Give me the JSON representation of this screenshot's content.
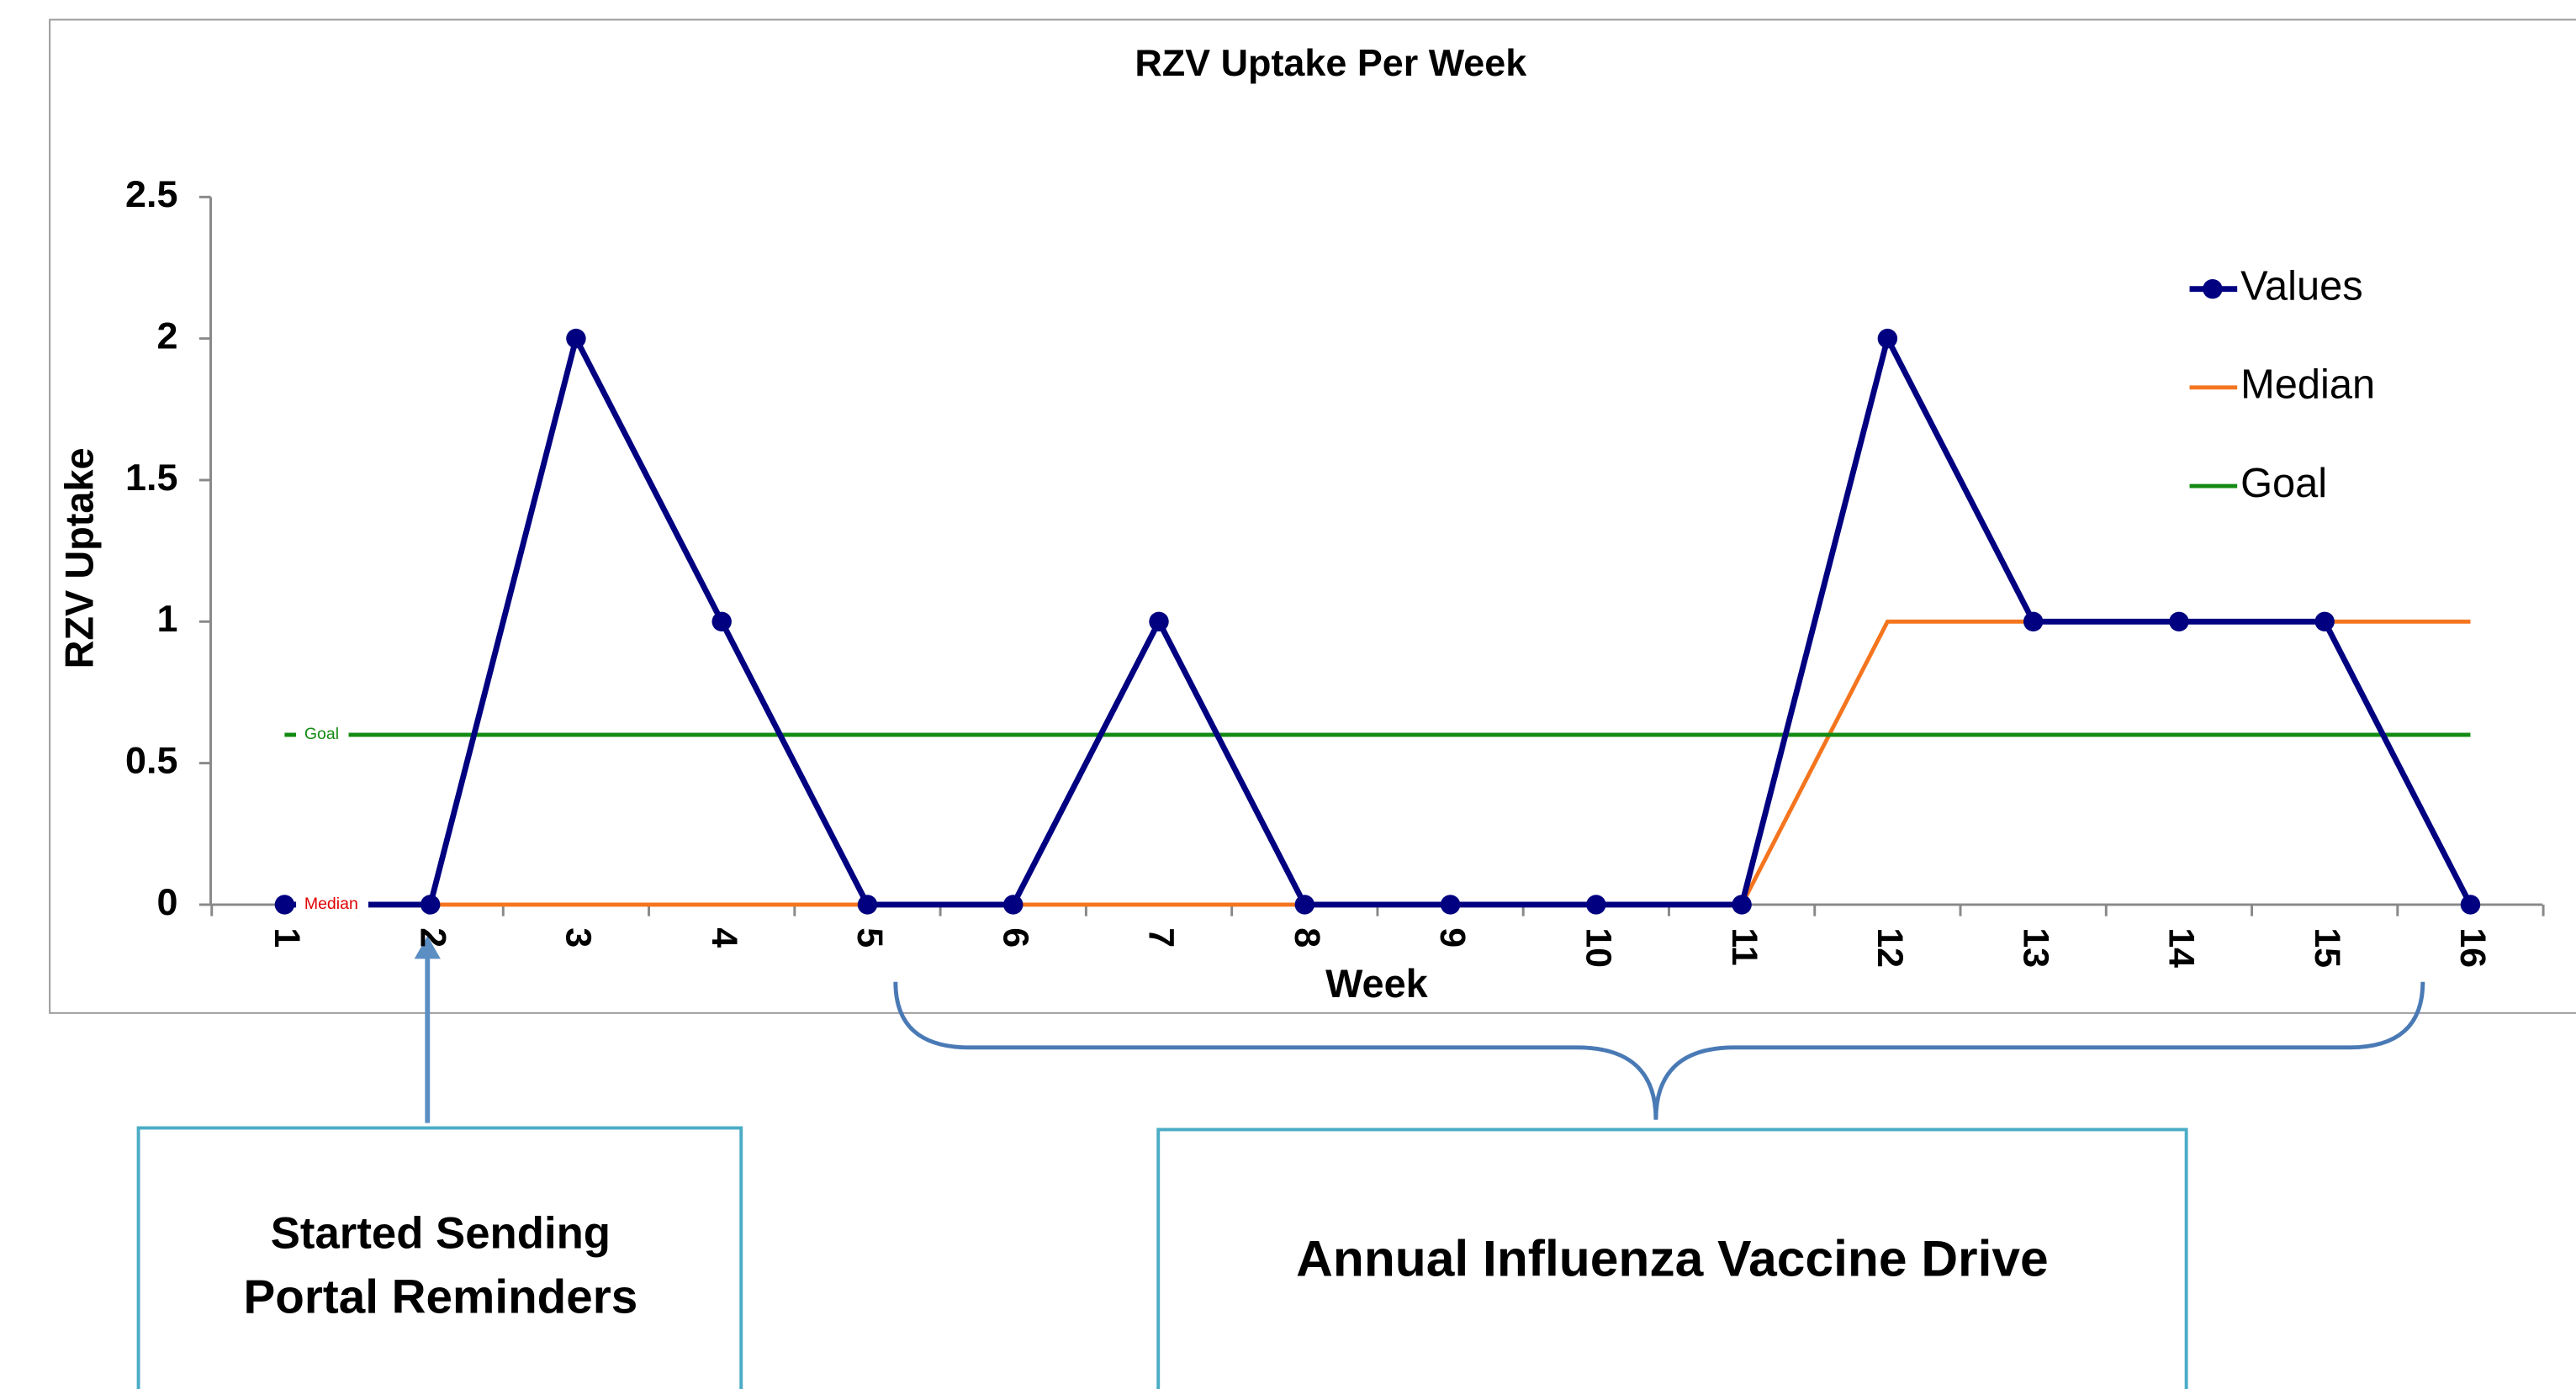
{
  "chart_data": {
    "type": "line",
    "title": "RZV Uptake Per Week",
    "x_label": "Week",
    "y_label": "RZV Uptake",
    "categories": [
      "1",
      "2",
      "3",
      "4",
      "5",
      "6",
      "7",
      "8",
      "9",
      "10",
      "11",
      "12",
      "13",
      "14",
      "15",
      "16"
    ],
    "series": [
      {
        "name": "Values",
        "color": "#000080",
        "values": [
          0,
          0,
          2,
          1,
          0,
          0,
          1,
          0,
          0,
          0,
          0,
          2,
          1,
          1,
          1,
          0
        ]
      },
      {
        "name": "Median",
        "color": "#f5751f",
        "values": [
          0,
          0,
          0,
          0,
          0,
          0,
          0,
          0,
          0,
          0,
          0,
          1,
          1,
          1,
          1,
          1
        ]
      },
      {
        "name": "Goal",
        "color": "#138a13",
        "values": [
          0.6,
          0.6,
          0.6,
          0.6,
          0.6,
          0.6,
          0.6,
          0.6,
          0.6,
          0.6,
          0.6,
          0.6,
          0.6,
          0.6,
          0.6,
          0.6
        ]
      }
    ],
    "ylim": [
      0,
      2.5
    ],
    "yticks": [
      0,
      0.5,
      1,
      1.5,
      2,
      2.5
    ],
    "legend": "upper right",
    "annotations": {
      "goal_label": "Goal",
      "median_label": "Median"
    }
  },
  "callouts": [
    {
      "lines": [
        "Started Sending",
        "Portal Reminders"
      ]
    },
    {
      "lines": [
        "Annual Influenza Vaccine Drive"
      ]
    }
  ]
}
